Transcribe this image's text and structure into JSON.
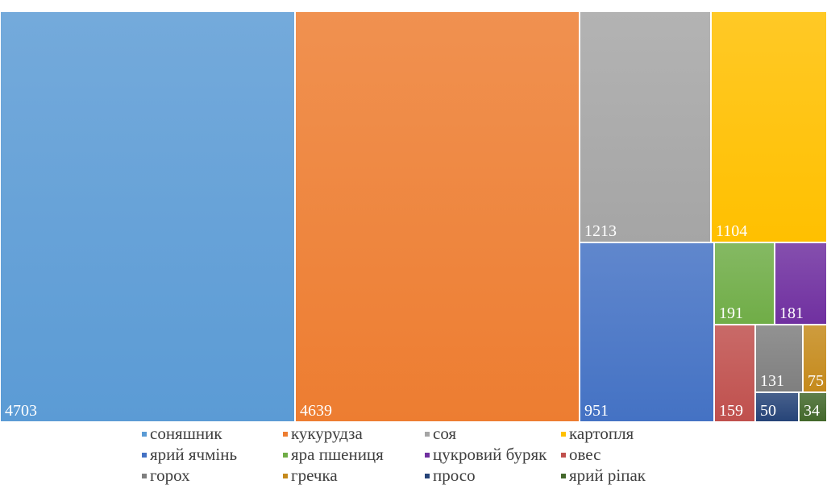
{
  "chart_data": {
    "type": "treemap",
    "title": "",
    "legend_position": "bottom",
    "series": [
      {
        "name": "соняшник",
        "value": 4703,
        "color": "#5b9bd5"
      },
      {
        "name": "кукурудза",
        "value": 4639,
        "color": "#ed7d31"
      },
      {
        "name": "соя",
        "value": 1213,
        "color": "#a5a5a5"
      },
      {
        "name": "картопля",
        "value": 1104,
        "color": "#ffc000"
      },
      {
        "name": "ярий ячмінь",
        "value": 951,
        "color": "#4472c4"
      },
      {
        "name": "яра пшениця",
        "value": 191,
        "color": "#70ad47"
      },
      {
        "name": "цукровий буряк",
        "value": 181,
        "color": "#7030a0"
      },
      {
        "name": "овес",
        "value": 159,
        "color": "#c0504d"
      },
      {
        "name": "горох",
        "value": 131,
        "color": "#7f7f7f"
      },
      {
        "name": "гречка",
        "value": 75,
        "color": "#c58a1c"
      },
      {
        "name": "просо",
        "value": 50,
        "color": "#264478"
      },
      {
        "name": "ярий ріпак",
        "value": 34,
        "color": "#43682b"
      }
    ]
  }
}
